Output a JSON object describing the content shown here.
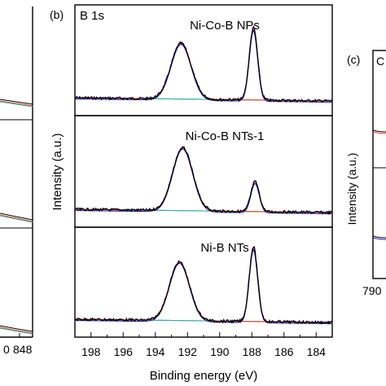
{
  "figure": {
    "panel_b_letter": "(b)",
    "panel_c_letter": "(c)",
    "core_level": "B 1s",
    "ylabel": "Intensity (a.u.)",
    "xlabel": "Binding energy (eV)",
    "left_partial_ticks": [
      "0",
      "848"
    ],
    "right_partial_label": "C",
    "right_partial_ylabel": "Intensity (a.u.)",
    "right_partial_tick": "790"
  },
  "chart_data": {
    "type": "line",
    "title": "",
    "xlabel": "Binding energy (eV)",
    "ylabel": "Intensity (a.u.)",
    "xlim": [
      199,
      183
    ],
    "x_reversed": true,
    "xticks": [
      198,
      196,
      194,
      192,
      190,
      188,
      186,
      184
    ],
    "grid": false,
    "series_colors": {
      "measured": "#000000",
      "fitted_envelope": "#1f1fb4",
      "peak_components": "#e0402a",
      "background": "#3ab0a0"
    },
    "panels": [
      {
        "label": "Ni-Co-B NPs",
        "peaks": [
          {
            "center": 192.4,
            "height": 0.7
          },
          {
            "center": 187.9,
            "height": 0.88
          }
        ]
      },
      {
        "label": "Ni-Co-B NTs-1",
        "peaks": [
          {
            "center": 192.3,
            "height": 0.78
          },
          {
            "center": 187.8,
            "height": 0.36
          }
        ]
      },
      {
        "label": "Ni-B NTs",
        "peaks": [
          {
            "center": 192.5,
            "height": 0.74
          },
          {
            "center": 187.9,
            "height": 0.92
          }
        ]
      }
    ]
  }
}
